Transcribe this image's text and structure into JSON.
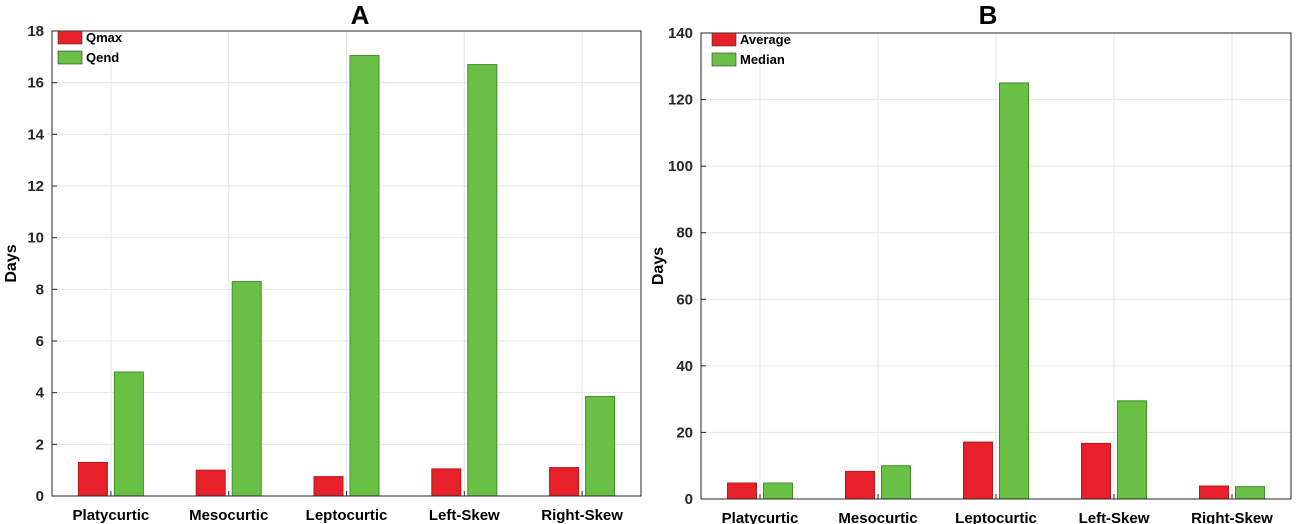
{
  "chart_data": [
    {
      "type": "bar",
      "title": "A",
      "ylabel": "Days",
      "xlabel": "",
      "ylim": [
        0,
        18
      ],
      "yticks": [
        0,
        2,
        4,
        6,
        8,
        10,
        12,
        14,
        16,
        18
      ],
      "grid": true,
      "legend_position": "top-left",
      "categories": [
        "Platycurtic",
        "Mesocurtic",
        "Leptocurtic",
        "Left-Skew",
        "Right-Skew"
      ],
      "series": [
        {
          "name": "Qmax",
          "color": "#e8202a",
          "values": [
            1.3,
            1.0,
            0.75,
            1.05,
            1.1
          ]
        },
        {
          "name": "Qend",
          "color": "#6abf45",
          "values": [
            4.8,
            8.3,
            17.05,
            16.7,
            3.85
          ]
        }
      ]
    },
    {
      "type": "bar",
      "title": "B",
      "ylabel": "Days",
      "xlabel": "",
      "ylim": [
        0,
        140
      ],
      "yticks": [
        0,
        20,
        40,
        60,
        80,
        100,
        120,
        140
      ],
      "grid": true,
      "legend_position": "top-left",
      "categories": [
        "Platycurtic",
        "Mesocurtic",
        "Leptocurtic",
        "Left-Skew",
        "Right-Skew"
      ],
      "series": [
        {
          "name": "Average",
          "color": "#e8202a",
          "values": [
            4.8,
            8.3,
            17.1,
            16.7,
            3.9
          ]
        },
        {
          "name": "Median",
          "color": "#6abf45",
          "values": [
            4.8,
            10.0,
            125.0,
            29.5,
            3.7
          ]
        }
      ]
    }
  ]
}
